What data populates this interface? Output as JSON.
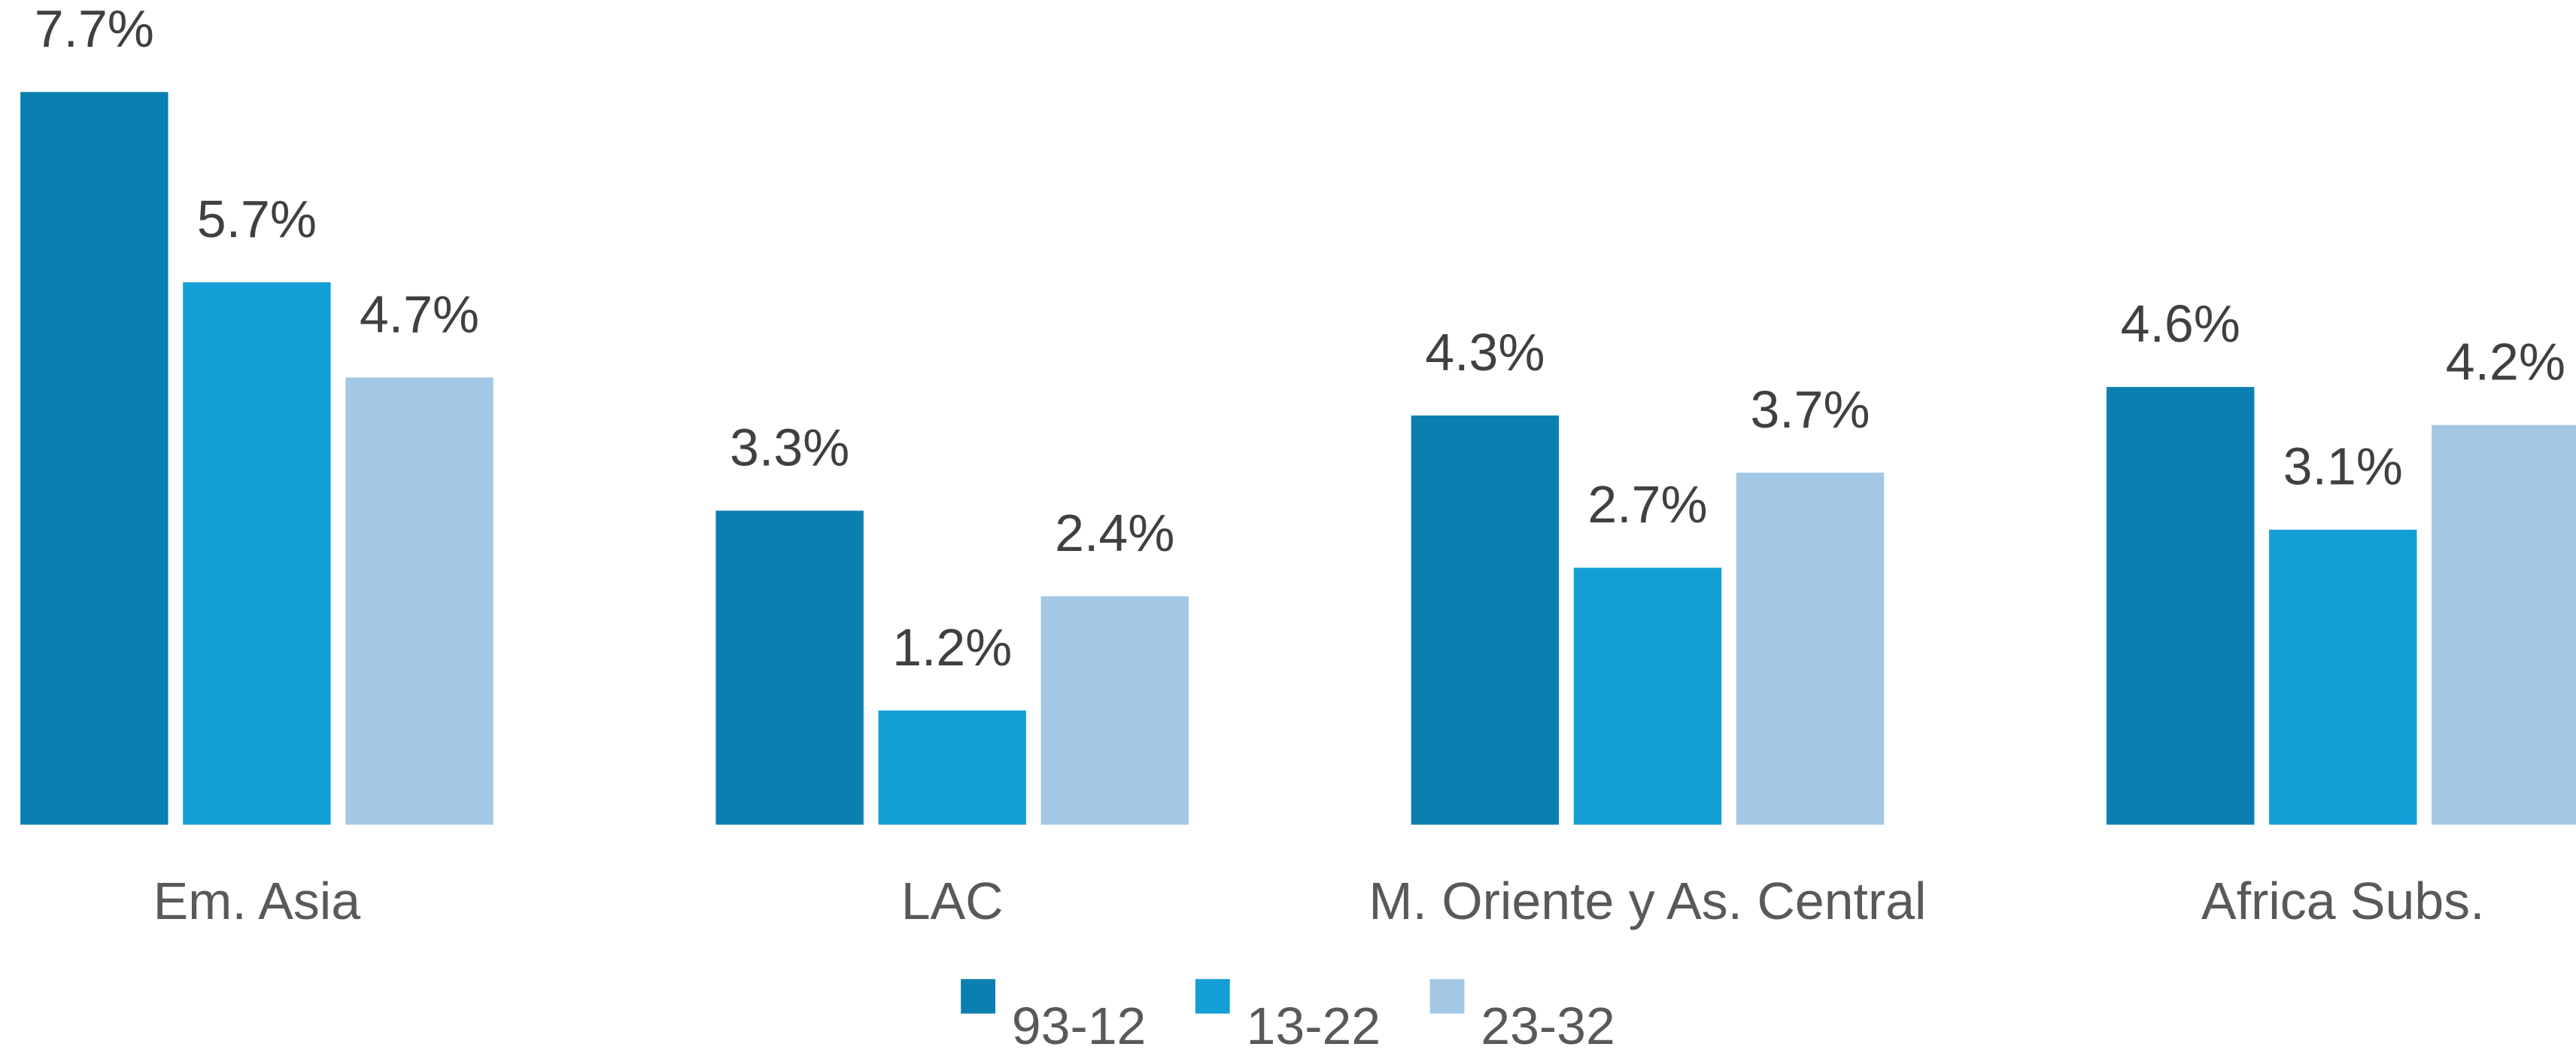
{
  "chart_data": {
    "type": "bar",
    "categories": [
      "Em. Asia",
      "LAC",
      "M. Oriente y As. Central",
      "Africa Subs."
    ],
    "series": [
      {
        "name": "93-12",
        "color": "#0b80b0",
        "values": [
          7.7,
          3.3,
          4.3,
          4.6
        ],
        "value_labels": [
          "7.7%",
          "3.3%",
          "4.3%",
          "4.6%"
        ]
      },
      {
        "name": "13-22",
        "color": "#139fd6",
        "values": [
          5.7,
          1.2,
          2.7,
          3.1
        ],
        "value_labels": [
          "5.7%",
          "1.2%",
          "2.7%",
          "3.1%"
        ]
      },
      {
        "name": "23-32",
        "color": "#a3c8e6",
        "values": [
          4.7,
          2.4,
          3.7,
          4.2
        ],
        "value_labels": [
          "4.7%",
          "2.4%",
          "3.7%",
          "4.2%"
        ]
      }
    ],
    "legend": "bottom"
  }
}
